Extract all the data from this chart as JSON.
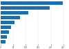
{
  "values": [
    248,
    195,
    110,
    78,
    55,
    42,
    32,
    25,
    18
  ],
  "bar_color": "#1a6faf",
  "background_color": "#ffffff",
  "xlim": [
    0,
    270
  ],
  "bar_height": 0.75,
  "figsize": [
    1.0,
    0.71
  ],
  "dpi": 100,
  "xticks": [
    0,
    50,
    100,
    150,
    200,
    250
  ]
}
